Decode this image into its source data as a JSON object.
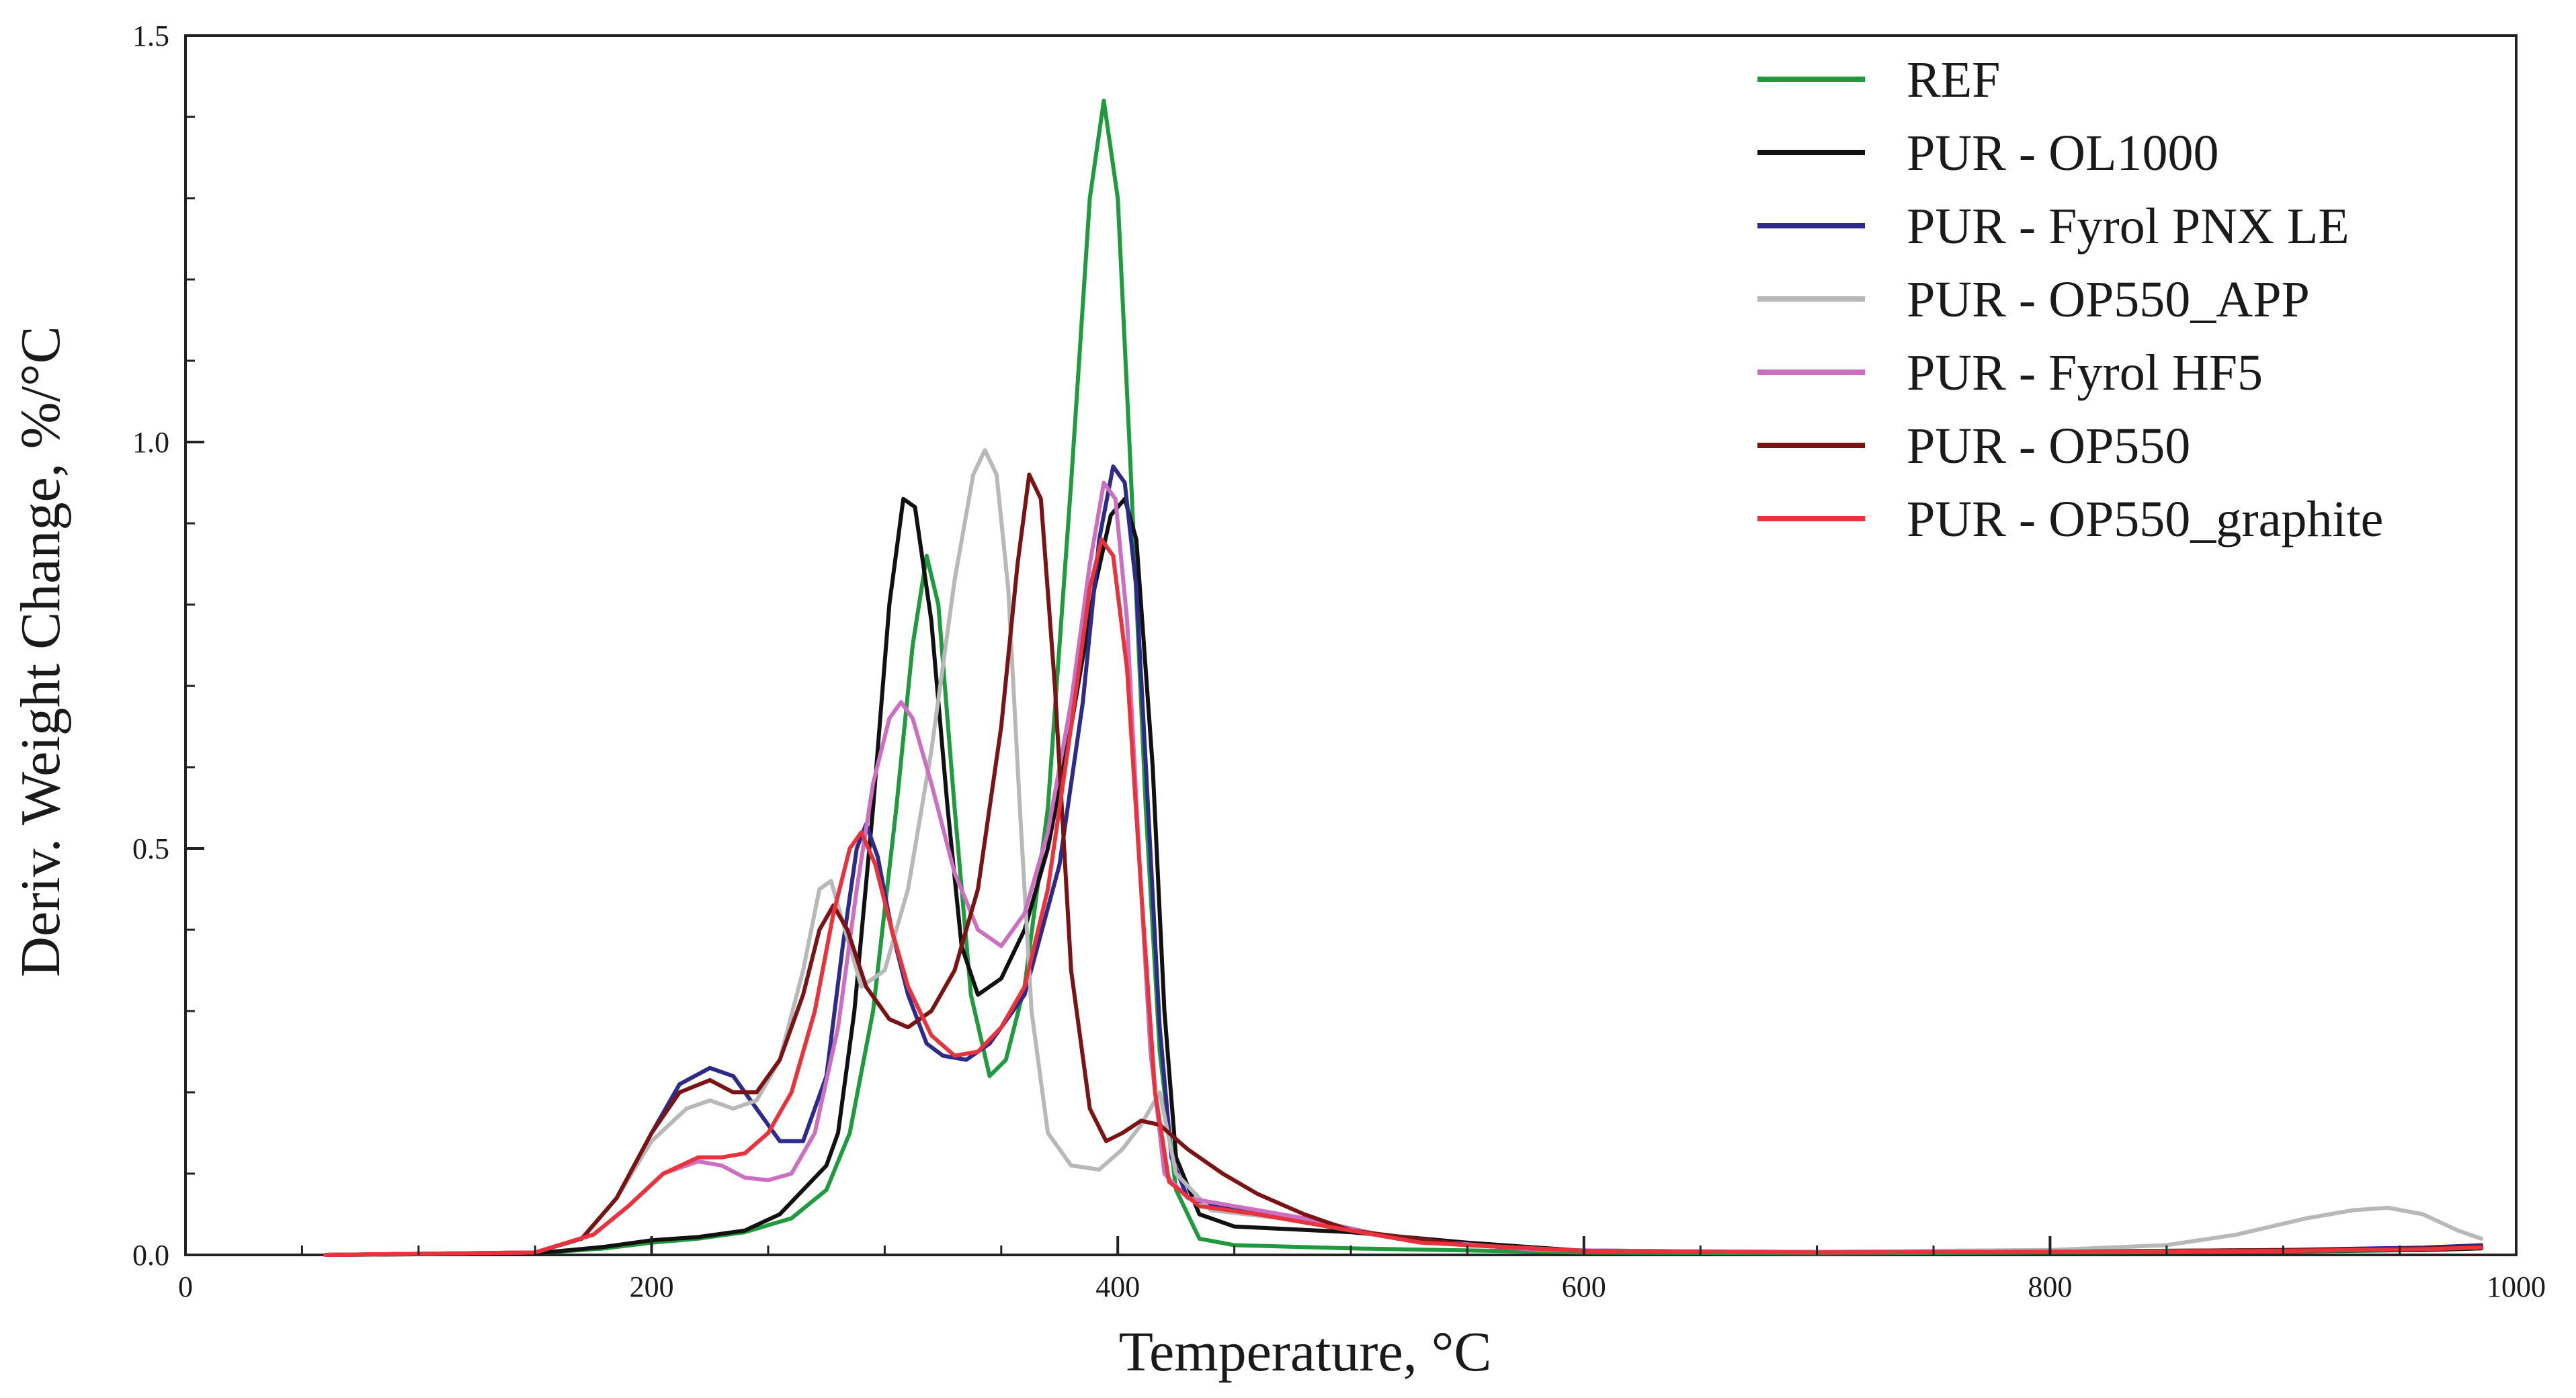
{
  "chart_data": {
    "type": "line",
    "title": "",
    "xlabel": "Temperature, °C",
    "ylabel": "Deriv. Weight Change, %/°C",
    "xlim": [
      0,
      1000
    ],
    "ylim": [
      0,
      1.5
    ],
    "x_ticks": [
      "0",
      "200",
      "400",
      "600",
      "800",
      "1000"
    ],
    "y_ticks": [
      "0.0",
      "0.5",
      "1.0",
      "1.5"
    ],
    "grid": false,
    "legend_position": "top-right",
    "series": [
      {
        "name": "REF",
        "color": "#1f9a3f",
        "points": [
          [
            60,
            0
          ],
          [
            150,
            0.002
          ],
          [
            180,
            0.008
          ],
          [
            200,
            0.015
          ],
          [
            220,
            0.02
          ],
          [
            240,
            0.028
          ],
          [
            260,
            0.045
          ],
          [
            275,
            0.08
          ],
          [
            285,
            0.15
          ],
          [
            295,
            0.3
          ],
          [
            305,
            0.55
          ],
          [
            312,
            0.75
          ],
          [
            318,
            0.86
          ],
          [
            323,
            0.8
          ],
          [
            330,
            0.55
          ],
          [
            337,
            0.32
          ],
          [
            345,
            0.22
          ],
          [
            352,
            0.24
          ],
          [
            360,
            0.33
          ],
          [
            370,
            0.55
          ],
          [
            380,
            0.95
          ],
          [
            388,
            1.3
          ],
          [
            394,
            1.42
          ],
          [
            400,
            1.3
          ],
          [
            405,
            1.0
          ],
          [
            412,
            0.55
          ],
          [
            418,
            0.25
          ],
          [
            425,
            0.08
          ],
          [
            435,
            0.02
          ],
          [
            450,
            0.012
          ],
          [
            500,
            0.008
          ],
          [
            600,
            0.003
          ],
          [
            700,
            0.002
          ],
          [
            800,
            0.003
          ],
          [
            900,
            0.004
          ],
          [
            960,
            0.006
          ],
          [
            985,
            0.008
          ]
        ]
      },
      {
        "name": "PUR - OL1000",
        "color": "#111111",
        "points": [
          [
            60,
            0
          ],
          [
            150,
            0.002
          ],
          [
            180,
            0.01
          ],
          [
            200,
            0.018
          ],
          [
            220,
            0.022
          ],
          [
            240,
            0.03
          ],
          [
            255,
            0.05
          ],
          [
            265,
            0.08
          ],
          [
            275,
            0.11
          ],
          [
            280,
            0.15
          ],
          [
            287,
            0.3
          ],
          [
            295,
            0.55
          ],
          [
            302,
            0.8
          ],
          [
            308,
            0.93
          ],
          [
            313,
            0.92
          ],
          [
            320,
            0.78
          ],
          [
            327,
            0.55
          ],
          [
            333,
            0.38
          ],
          [
            340,
            0.32
          ],
          [
            350,
            0.34
          ],
          [
            360,
            0.4
          ],
          [
            370,
            0.5
          ],
          [
            380,
            0.65
          ],
          [
            390,
            0.82
          ],
          [
            397,
            0.91
          ],
          [
            403,
            0.93
          ],
          [
            408,
            0.88
          ],
          [
            415,
            0.6
          ],
          [
            420,
            0.3
          ],
          [
            425,
            0.12
          ],
          [
            435,
            0.05
          ],
          [
            450,
            0.035
          ],
          [
            500,
            0.028
          ],
          [
            550,
            0.015
          ],
          [
            600,
            0.005
          ],
          [
            700,
            0.003
          ],
          [
            800,
            0.004
          ],
          [
            900,
            0.005
          ],
          [
            960,
            0.006
          ],
          [
            985,
            0.008
          ]
        ]
      },
      {
        "name": "PUR - Fyrol PNX LE",
        "color": "#2e2a8c",
        "points": [
          [
            60,
            0
          ],
          [
            150,
            0.003
          ],
          [
            170,
            0.02
          ],
          [
            185,
            0.07
          ],
          [
            200,
            0.15
          ],
          [
            212,
            0.21
          ],
          [
            225,
            0.23
          ],
          [
            235,
            0.22
          ],
          [
            245,
            0.18
          ],
          [
            255,
            0.14
          ],
          [
            265,
            0.14
          ],
          [
            275,
            0.22
          ],
          [
            282,
            0.38
          ],
          [
            288,
            0.5
          ],
          [
            292,
            0.53
          ],
          [
            297,
            0.49
          ],
          [
            303,
            0.4
          ],
          [
            310,
            0.32
          ],
          [
            318,
            0.26
          ],
          [
            325,
            0.245
          ],
          [
            335,
            0.24
          ],
          [
            345,
            0.26
          ],
          [
            360,
            0.32
          ],
          [
            375,
            0.48
          ],
          [
            385,
            0.68
          ],
          [
            392,
            0.88
          ],
          [
            398,
            0.97
          ],
          [
            403,
            0.95
          ],
          [
            408,
            0.82
          ],
          [
            413,
            0.55
          ],
          [
            418,
            0.28
          ],
          [
            423,
            0.12
          ],
          [
            430,
            0.07
          ],
          [
            450,
            0.055
          ],
          [
            480,
            0.045
          ],
          [
            520,
            0.02
          ],
          [
            580,
            0.006
          ],
          [
            700,
            0.003
          ],
          [
            800,
            0.004
          ],
          [
            900,
            0.006
          ],
          [
            960,
            0.009
          ],
          [
            985,
            0.012
          ]
        ]
      },
      {
        "name": "PUR - OP550_APP",
        "color": "#b8b8b8",
        "points": [
          [
            60,
            0
          ],
          [
            150,
            0.003
          ],
          [
            170,
            0.02
          ],
          [
            185,
            0.07
          ],
          [
            200,
            0.14
          ],
          [
            215,
            0.18
          ],
          [
            225,
            0.19
          ],
          [
            235,
            0.18
          ],
          [
            245,
            0.19
          ],
          [
            255,
            0.24
          ],
          [
            265,
            0.35
          ],
          [
            272,
            0.45
          ],
          [
            277,
            0.46
          ],
          [
            283,
            0.4
          ],
          [
            290,
            0.33
          ],
          [
            300,
            0.35
          ],
          [
            310,
            0.45
          ],
          [
            320,
            0.62
          ],
          [
            330,
            0.83
          ],
          [
            338,
            0.96
          ],
          [
            343,
            0.99
          ],
          [
            348,
            0.96
          ],
          [
            353,
            0.82
          ],
          [
            358,
            0.55
          ],
          [
            363,
            0.3
          ],
          [
            370,
            0.15
          ],
          [
            380,
            0.11
          ],
          [
            392,
            0.105
          ],
          [
            402,
            0.13
          ],
          [
            410,
            0.16
          ],
          [
            418,
            0.2
          ],
          [
            425,
            0.1
          ],
          [
            440,
            0.055
          ],
          [
            470,
            0.045
          ],
          [
            500,
            0.03
          ],
          [
            550,
            0.012
          ],
          [
            600,
            0.005
          ],
          [
            700,
            0.004
          ],
          [
            800,
            0.006
          ],
          [
            850,
            0.012
          ],
          [
            880,
            0.025
          ],
          [
            910,
            0.045
          ],
          [
            930,
            0.055
          ],
          [
            945,
            0.058
          ],
          [
            960,
            0.05
          ],
          [
            975,
            0.03
          ],
          [
            985,
            0.02
          ]
        ]
      },
      {
        "name": "PUR - Fyrol HF5",
        "color": "#cc6fc0",
        "points": [
          [
            60,
            0
          ],
          [
            150,
            0.003
          ],
          [
            175,
            0.025
          ],
          [
            190,
            0.06
          ],
          [
            205,
            0.1
          ],
          [
            220,
            0.115
          ],
          [
            230,
            0.11
          ],
          [
            240,
            0.095
          ],
          [
            250,
            0.092
          ],
          [
            260,
            0.1
          ],
          [
            270,
            0.15
          ],
          [
            280,
            0.28
          ],
          [
            288,
            0.45
          ],
          [
            295,
            0.58
          ],
          [
            302,
            0.66
          ],
          [
            307,
            0.68
          ],
          [
            312,
            0.66
          ],
          [
            320,
            0.58
          ],
          [
            330,
            0.47
          ],
          [
            340,
            0.4
          ],
          [
            350,
            0.38
          ],
          [
            360,
            0.42
          ],
          [
            370,
            0.52
          ],
          [
            380,
            0.68
          ],
          [
            388,
            0.85
          ],
          [
            394,
            0.95
          ],
          [
            399,
            0.93
          ],
          [
            404,
            0.78
          ],
          [
            409,
            0.5
          ],
          [
            414,
            0.25
          ],
          [
            420,
            0.1
          ],
          [
            430,
            0.07
          ],
          [
            450,
            0.06
          ],
          [
            480,
            0.045
          ],
          [
            520,
            0.02
          ],
          [
            580,
            0.006
          ],
          [
            700,
            0.003
          ],
          [
            800,
            0.004
          ],
          [
            900,
            0.005
          ],
          [
            960,
            0.007
          ],
          [
            985,
            0.01
          ]
        ]
      },
      {
        "name": "PUR - OP550",
        "color": "#7a1414",
        "points": [
          [
            60,
            0
          ],
          [
            150,
            0.003
          ],
          [
            170,
            0.02
          ],
          [
            185,
            0.07
          ],
          [
            200,
            0.15
          ],
          [
            212,
            0.2
          ],
          [
            225,
            0.215
          ],
          [
            235,
            0.2
          ],
          [
            245,
            0.2
          ],
          [
            255,
            0.24
          ],
          [
            265,
            0.32
          ],
          [
            272,
            0.4
          ],
          [
            278,
            0.43
          ],
          [
            284,
            0.4
          ],
          [
            292,
            0.33
          ],
          [
            302,
            0.29
          ],
          [
            310,
            0.28
          ],
          [
            320,
            0.3
          ],
          [
            330,
            0.35
          ],
          [
            340,
            0.45
          ],
          [
            350,
            0.65
          ],
          [
            357,
            0.85
          ],
          [
            362,
            0.96
          ],
          [
            367,
            0.93
          ],
          [
            373,
            0.7
          ],
          [
            380,
            0.35
          ],
          [
            388,
            0.18
          ],
          [
            395,
            0.14
          ],
          [
            402,
            0.15
          ],
          [
            410,
            0.165
          ],
          [
            418,
            0.16
          ],
          [
            430,
            0.13
          ],
          [
            445,
            0.1
          ],
          [
            460,
            0.075
          ],
          [
            480,
            0.05
          ],
          [
            500,
            0.03
          ],
          [
            550,
            0.012
          ],
          [
            600,
            0.005
          ],
          [
            700,
            0.003
          ],
          [
            800,
            0.004
          ],
          [
            900,
            0.006
          ],
          [
            960,
            0.008
          ],
          [
            985,
            0.01
          ]
        ]
      },
      {
        "name": "PUR - OP550_graphite",
        "color": "#e8333d",
        "points": [
          [
            60,
            0
          ],
          [
            150,
            0.003
          ],
          [
            175,
            0.025
          ],
          [
            190,
            0.06
          ],
          [
            205,
            0.1
          ],
          [
            220,
            0.12
          ],
          [
            230,
            0.12
          ],
          [
            240,
            0.125
          ],
          [
            250,
            0.15
          ],
          [
            260,
            0.2
          ],
          [
            270,
            0.3
          ],
          [
            278,
            0.42
          ],
          [
            285,
            0.5
          ],
          [
            290,
            0.52
          ],
          [
            296,
            0.48
          ],
          [
            303,
            0.4
          ],
          [
            310,
            0.33
          ],
          [
            320,
            0.27
          ],
          [
            330,
            0.245
          ],
          [
            340,
            0.25
          ],
          [
            350,
            0.28
          ],
          [
            360,
            0.33
          ],
          [
            370,
            0.45
          ],
          [
            380,
            0.65
          ],
          [
            388,
            0.82
          ],
          [
            393,
            0.88
          ],
          [
            398,
            0.86
          ],
          [
            404,
            0.72
          ],
          [
            410,
            0.45
          ],
          [
            416,
            0.2
          ],
          [
            422,
            0.09
          ],
          [
            435,
            0.06
          ],
          [
            460,
            0.05
          ],
          [
            490,
            0.035
          ],
          [
            530,
            0.015
          ],
          [
            600,
            0.005
          ],
          [
            700,
            0.003
          ],
          [
            800,
            0.004
          ],
          [
            900,
            0.005
          ],
          [
            960,
            0.007
          ],
          [
            985,
            0.009
          ]
        ]
      }
    ]
  }
}
